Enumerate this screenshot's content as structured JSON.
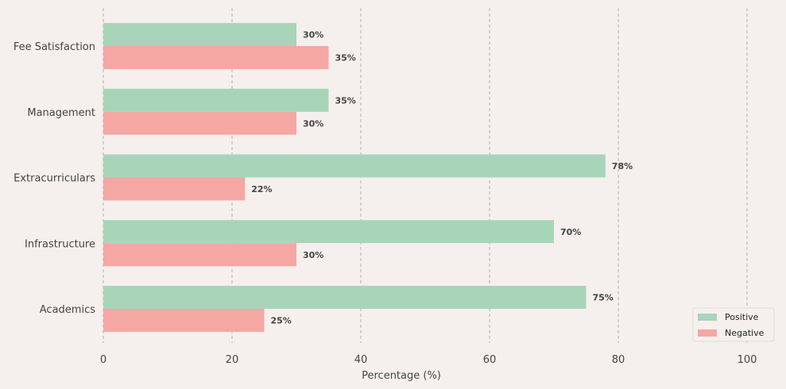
{
  "chart_data": {
    "type": "bar",
    "orientation": "horizontal",
    "categories": [
      "Academics",
      "Infrastructure",
      "Extracurriculars",
      "Management",
      "Fee Satisfaction"
    ],
    "series": [
      {
        "name": "Positive",
        "values": [
          75,
          70,
          78,
          35,
          30
        ],
        "color": "#a8d5ba"
      },
      {
        "name": "Negative",
        "values": [
          25,
          30,
          22,
          30,
          35
        ],
        "color": "#f5a7a4"
      }
    ],
    "xlabel": "Percentage (%)",
    "ylabel": "",
    "xlim": [
      0,
      100
    ],
    "xticks": [
      "0",
      "20",
      "40",
      "60",
      "80",
      "100"
    ],
    "value_suffix": "%",
    "grid": "x-axis dashed",
    "legend_position": "bottom-right",
    "background": "#f5f0ed"
  }
}
